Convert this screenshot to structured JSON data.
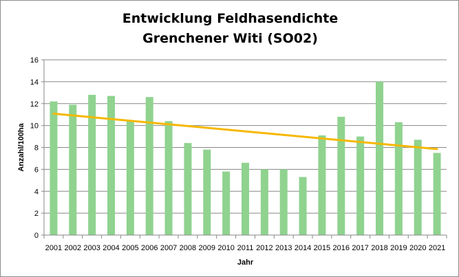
{
  "chart_data": {
    "type": "bar",
    "title_line1": "Entwicklung Feldhasendichte",
    "title_line2": "Grenchener Witi (SO02)",
    "xlabel": "Jahr",
    "ylabel": "Anzahl/100ha",
    "ylim": [
      0,
      16
    ],
    "yticks": [
      0,
      2,
      4,
      6,
      8,
      10,
      12,
      14,
      16
    ],
    "grid": true,
    "categories": [
      "2001",
      "2002",
      "2003",
      "2004",
      "2005",
      "2006",
      "2007",
      "2008",
      "2009",
      "2010",
      "2011",
      "2012",
      "2013",
      "2014",
      "2015",
      "2016",
      "2017",
      "2018",
      "2019",
      "2020",
      "2021"
    ],
    "values": [
      12.2,
      11.9,
      12.8,
      12.7,
      10.5,
      12.6,
      10.4,
      8.4,
      7.8,
      5.8,
      6.6,
      6.0,
      6.0,
      5.3,
      9.1,
      10.8,
      9.0,
      14.0,
      10.3,
      8.7,
      7.5
    ],
    "bar_color": "#8fd38f",
    "trendline": {
      "start": 11.08,
      "end": 7.85,
      "color": "#f5b800"
    }
  }
}
